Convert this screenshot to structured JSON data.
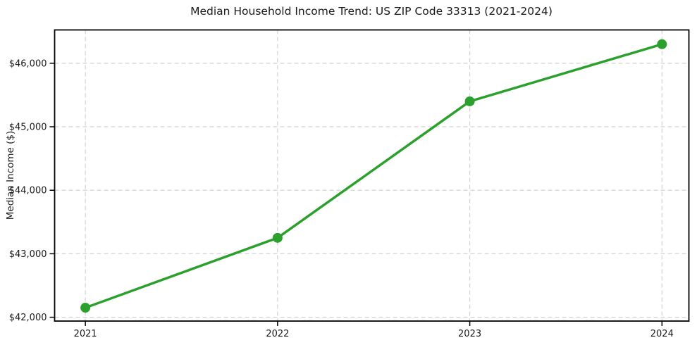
{
  "chart_data": {
    "type": "line",
    "title": "Median Household Income Trend: US ZIP Code 33313 (2021-2024)",
    "xlabel": "",
    "ylabel": "Median Income ($)",
    "x": [
      2021,
      2022,
      2023,
      2024
    ],
    "xtick_labels": [
      "2021",
      "2022",
      "2023",
      "2024"
    ],
    "yticks": [
      42000,
      43000,
      44000,
      45000,
      46000
    ],
    "ytick_labels": [
      "$42,000",
      "$43,000",
      "$44,000",
      "$45,000",
      "$46,000"
    ],
    "xlim": [
      2020.84,
      2024.14
    ],
    "ylim": [
      41940,
      46525
    ],
    "grid": true,
    "grid_style": "dashed",
    "legend": false,
    "series": [
      {
        "name": "Median Household Income",
        "values": [
          42150,
          43250,
          45400,
          46300
        ],
        "color": "#2ca02c",
        "marker": "circle",
        "marker_size": 7,
        "line_width": 3.5
      }
    ],
    "style": {
      "line_color": "#2ca02c",
      "grid_color": "#d2d2d2",
      "axis_color": "#000000",
      "text_color": "#1a1a1a",
      "background": "#ffffff"
    }
  }
}
